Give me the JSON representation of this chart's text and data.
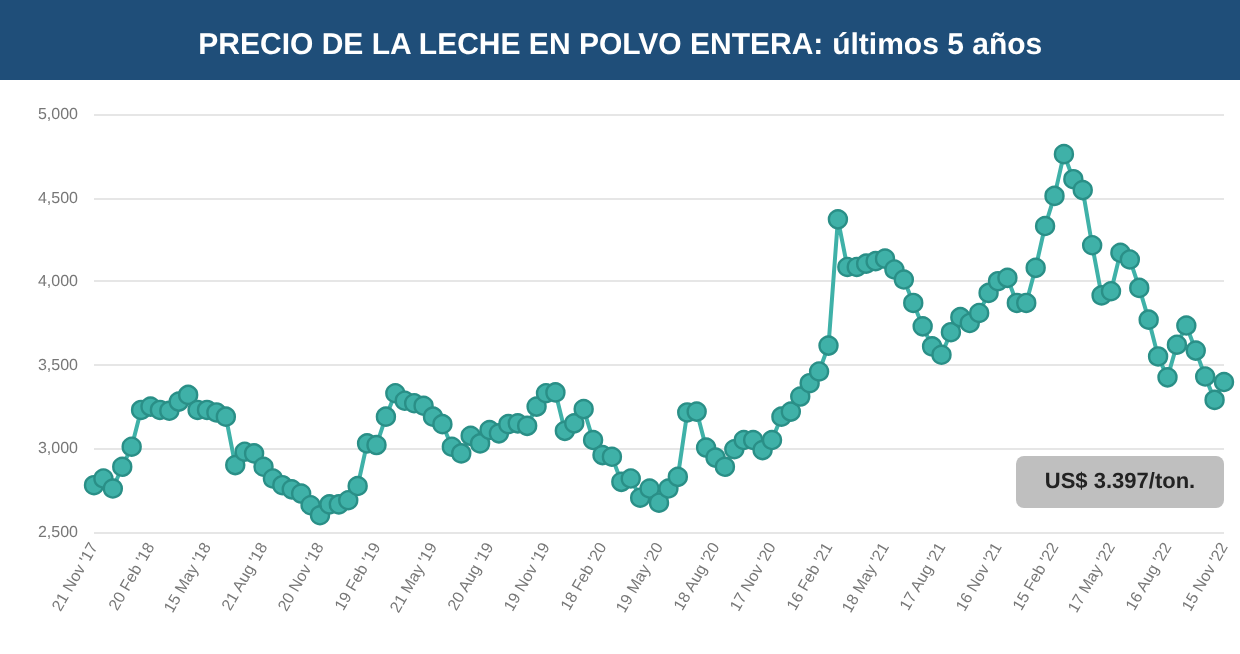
{
  "chart_data": {
    "type": "line",
    "title": "PRECIO DE LA LECHE EN POLVO ENTERA: últimos 5 años",
    "categories": [
      "21 Nov '17",
      null,
      null,
      null,
      null,
      null,
      "20 Feb '18",
      null,
      null,
      null,
      null,
      null,
      "15 May '18",
      null,
      null,
      null,
      null,
      null,
      "21 Aug '18",
      null,
      null,
      null,
      null,
      null,
      "20 Nov '18",
      null,
      null,
      null,
      null,
      null,
      "19 Feb '19",
      null,
      null,
      null,
      null,
      null,
      "21 May '19",
      null,
      null,
      null,
      null,
      null,
      "20 Aug '19",
      null,
      null,
      null,
      null,
      null,
      "19 Nov '19",
      null,
      null,
      null,
      null,
      null,
      "18 Feb '20",
      null,
      null,
      null,
      null,
      null,
      "19 May '20",
      null,
      null,
      null,
      null,
      null,
      "18 Aug '20",
      null,
      null,
      null,
      null,
      null,
      "17 Nov '20",
      null,
      null,
      null,
      null,
      null,
      "16 Feb '21",
      null,
      null,
      null,
      null,
      null,
      "18 May '21",
      null,
      null,
      null,
      null,
      null,
      "17 Aug '21",
      null,
      null,
      null,
      null,
      null,
      "16 Nov '21",
      null,
      null,
      null,
      null,
      null,
      "15 Feb '22",
      null,
      null,
      null,
      null,
      null,
      "17 May '22",
      null,
      null,
      null,
      null,
      null,
      "16 Aug '22",
      null,
      null,
      null,
      null,
      null,
      "15 Nov '22"
    ],
    "series": [
      {
        "color": "#3fb1a8",
        "values": [
          2780,
          2820,
          2760,
          2890,
          3010,
          3230,
          3250,
          3230,
          3225,
          3280,
          3320,
          3230,
          3230,
          3215,
          3190,
          2900,
          2980,
          2970,
          2890,
          2820,
          2780,
          2755,
          2730,
          2660,
          2600,
          2665,
          2665,
          2690,
          2775,
          3030,
          3020,
          3190,
          3330,
          3285,
          3270,
          3255,
          3190,
          3145,
          3010,
          2970,
          3075,
          3030,
          3110,
          3090,
          3145,
          3150,
          3135,
          3250,
          3330,
          3335,
          3105,
          3150,
          3235,
          3050,
          2960,
          2950,
          2800,
          2820,
          2705,
          2760,
          2675,
          2760,
          2830,
          3215,
          3220,
          3005,
          2945,
          2890,
          2995,
          3050,
          3050,
          2990,
          3050,
          3190,
          3220,
          3310,
          3390,
          3460,
          3615,
          4370,
          4085,
          4085,
          4105,
          4120,
          4135,
          4070,
          4010,
          3870,
          3730,
          3610,
          3560,
          3695,
          3785,
          3750,
          3810,
          3930,
          4000,
          4020,
          3870,
          3870,
          4080,
          4330,
          4510,
          4760,
          4610,
          4545,
          4215,
          3915,
          3940,
          4170,
          4130,
          3960,
          3770,
          3550,
          3425,
          3620,
          3735,
          3585,
          3430,
          3290,
          3397
        ]
      }
    ],
    "ylim": [
      2500,
      5000
    ],
    "yticks": [
      {
        "value": 2500,
        "label": "2,500"
      },
      {
        "value": 3000,
        "label": "3,000"
      },
      {
        "value": 3500,
        "label": "3,500"
      },
      {
        "value": 4000,
        "label": "4,000"
      },
      {
        "value": 4500,
        "label": "4,500"
      },
      {
        "value": 5000,
        "label": "5,000"
      }
    ],
    "grid": "y",
    "marker": "circle",
    "line_style": "solid",
    "annotations": [
      "US$ 3.397/ton."
    ]
  }
}
